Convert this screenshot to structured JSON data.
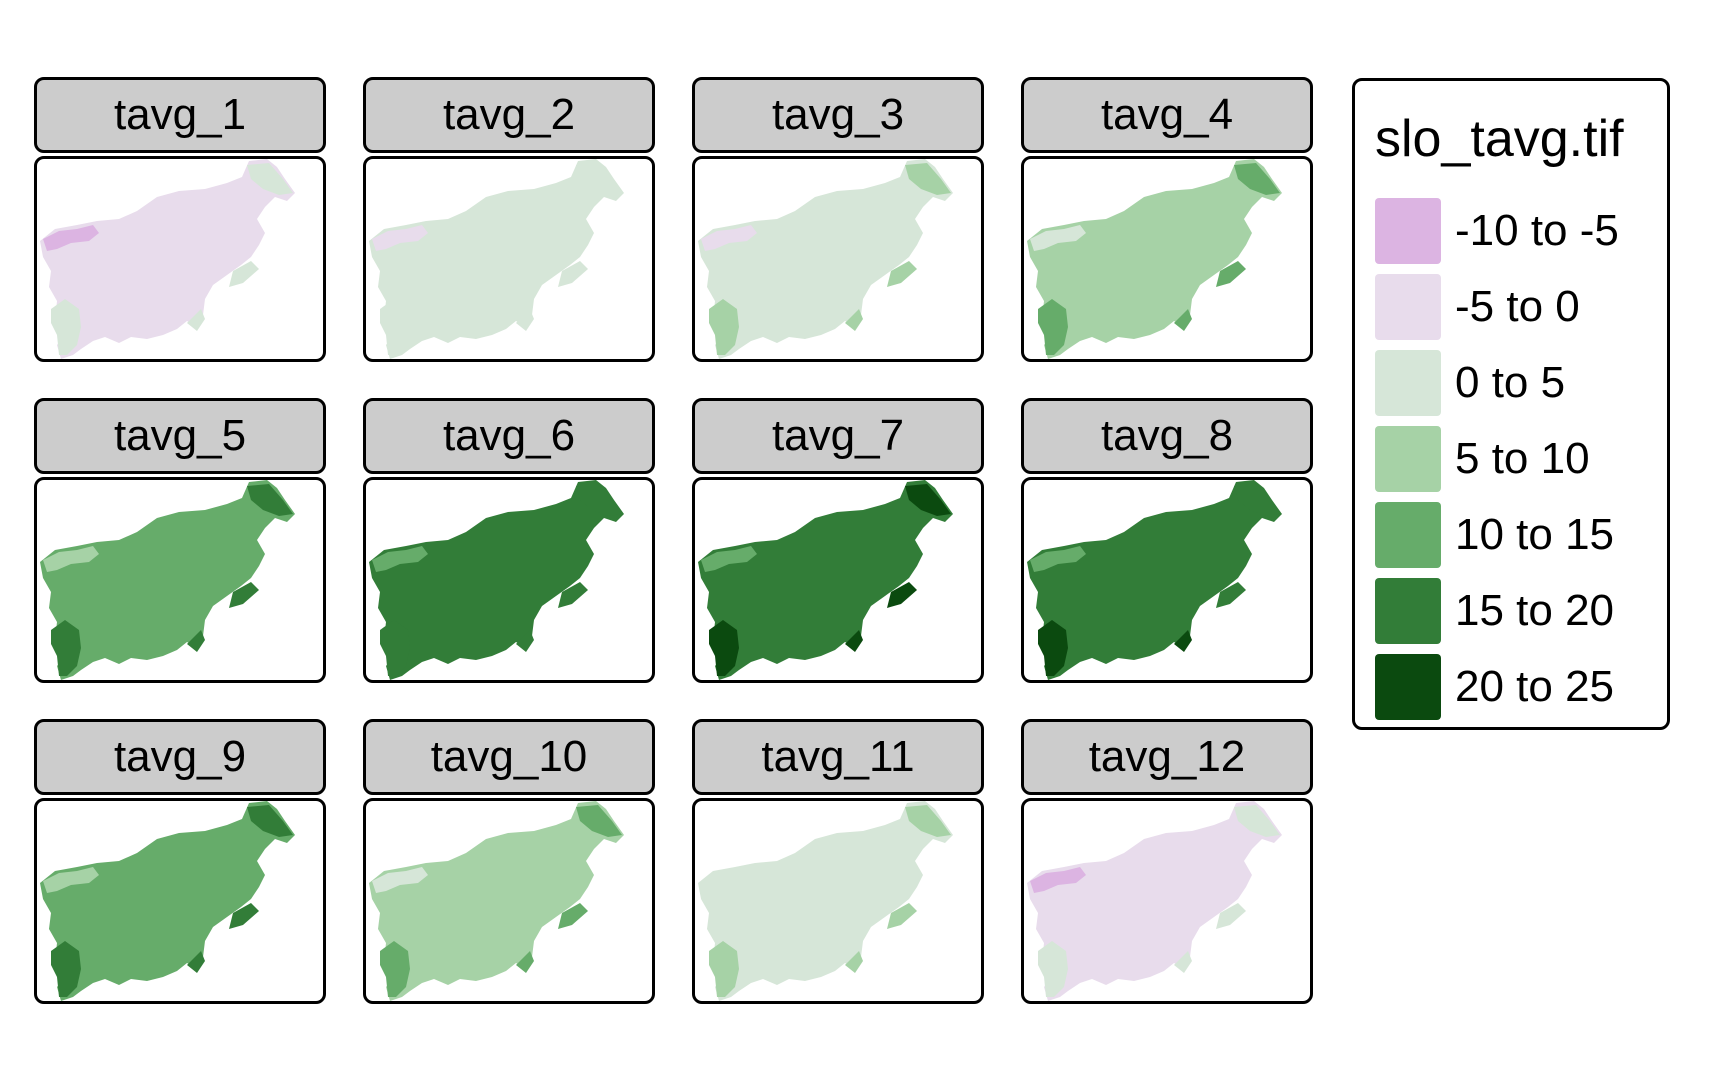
{
  "palette": {
    "c0": "#dcb4e2",
    "c1": "#e8dcec",
    "c2": "#d6e6d8",
    "c3": "#a6d2a6",
    "c4": "#66ac6a",
    "c5": "#327d38",
    "c6": "#0b4a0f"
  },
  "panels": [
    {
      "title": "tavg_1",
      "colors": {
        "base": "#e8dcec",
        "high": "#dcb4e2",
        "low": "#d6e6d8",
        "warm": "#d6e6d8"
      }
    },
    {
      "title": "tavg_2",
      "colors": {
        "base": "#d6e6d8",
        "high": "#e8dcec",
        "low": "#d6e6d8",
        "warm": "#d6e6d8"
      }
    },
    {
      "title": "tavg_3",
      "colors": {
        "base": "#d6e6d8",
        "high": "#e8dcec",
        "low": "#a6d2a6",
        "warm": "#a6d2a6"
      }
    },
    {
      "title": "tavg_4",
      "colors": {
        "base": "#a6d2a6",
        "high": "#d6e6d8",
        "low": "#66ac6a",
        "warm": "#66ac6a"
      }
    },
    {
      "title": "tavg_5",
      "colors": {
        "base": "#66ac6a",
        "high": "#a6d2a6",
        "low": "#327d38",
        "warm": "#327d38"
      }
    },
    {
      "title": "tavg_6",
      "colors": {
        "base": "#327d38",
        "high": "#66ac6a",
        "low": "#327d38",
        "warm": "#327d38"
      }
    },
    {
      "title": "tavg_7",
      "colors": {
        "base": "#327d38",
        "high": "#66ac6a",
        "low": "#0b4a0f",
        "warm": "#0b4a0f"
      }
    },
    {
      "title": "tavg_8",
      "colors": {
        "base": "#327d38",
        "high": "#66ac6a",
        "low": "#0b4a0f",
        "warm": "#327d38"
      }
    },
    {
      "title": "tavg_9",
      "colors": {
        "base": "#66ac6a",
        "high": "#a6d2a6",
        "low": "#327d38",
        "warm": "#327d38"
      }
    },
    {
      "title": "tavg_10",
      "colors": {
        "base": "#a6d2a6",
        "high": "#d6e6d8",
        "low": "#66ac6a",
        "warm": "#66ac6a"
      }
    },
    {
      "title": "tavg_11",
      "colors": {
        "base": "#d6e6d8",
        "high": "#d6e6d8",
        "low": "#a6d2a6",
        "warm": "#a6d2a6"
      }
    },
    {
      "title": "tavg_12",
      "colors": {
        "base": "#e8dcec",
        "high": "#dcb4e2",
        "low": "#d6e6d8",
        "warm": "#d6e6d8"
      }
    }
  ],
  "legend": {
    "title": "slo_tavg.tif",
    "items": [
      {
        "label": "-10 to -5",
        "color": "#dcb4e2"
      },
      {
        "label": "-5 to 0",
        "color": "#e8dcec"
      },
      {
        "label": "0 to 5",
        "color": "#d6e6d8"
      },
      {
        "label": "5 to 10",
        "color": "#a6d2a6"
      },
      {
        "label": "10 to 15",
        "color": "#66ac6a"
      },
      {
        "label": "15 to 20",
        "color": "#327d38"
      },
      {
        "label": "20 to 25",
        "color": "#0b4a0f"
      }
    ]
  }
}
